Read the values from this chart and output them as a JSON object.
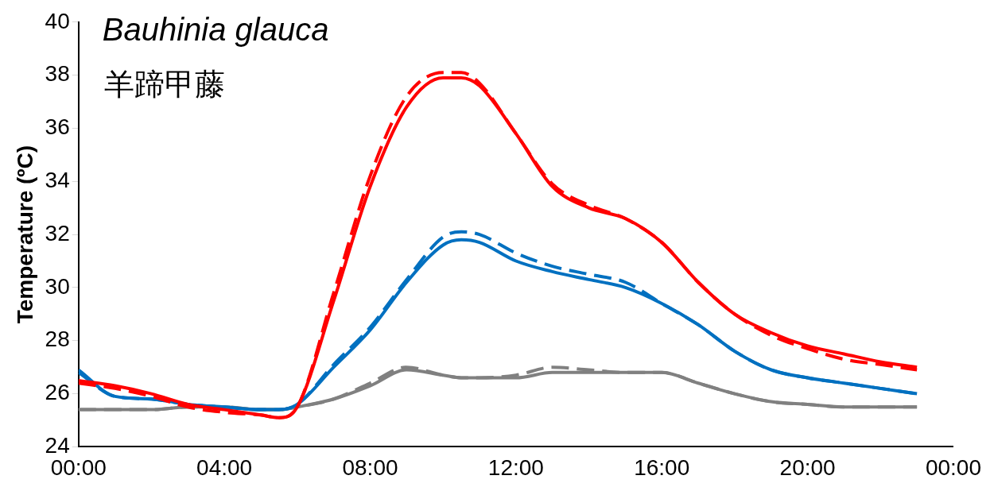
{
  "chart_data": {
    "type": "line",
    "title": "Bauhinia glauca",
    "subtitle": "羊蹄甲藤",
    "ylabel": "Temperature (ºC)",
    "x": [
      0,
      1,
      2,
      3,
      4,
      5,
      5.5,
      6,
      7,
      8,
      9,
      10,
      10.5,
      11,
      12,
      13,
      14,
      15,
      16,
      17,
      18,
      19,
      20,
      21,
      22,
      23
    ],
    "xlim": [
      0,
      24
    ],
    "xticks": [
      {
        "value": 0,
        "label": "00:00"
      },
      {
        "value": 4,
        "label": "04:00"
      },
      {
        "value": 8,
        "label": "08:00"
      },
      {
        "value": 12,
        "label": "12:00"
      },
      {
        "value": 16,
        "label": "16:00"
      },
      {
        "value": 20,
        "label": "20:00"
      },
      {
        "value": 24,
        "label": "00:00"
      }
    ],
    "ylim": [
      24,
      40
    ],
    "yticks": [
      24,
      26,
      28,
      30,
      32,
      34,
      36,
      38,
      40
    ],
    "grid": false,
    "legend": false,
    "marker": "none",
    "series": [
      {
        "color": "#ff0000",
        "line_style": "solid",
        "values": [
          26.5,
          26.3,
          26.0,
          25.6,
          25.4,
          25.2,
          25.1,
          25.5,
          29.5,
          33.8,
          36.8,
          37.9,
          37.9,
          37.6,
          35.8,
          33.8,
          33.0,
          32.6,
          31.7,
          30.2,
          29.0,
          28.3,
          27.8,
          27.5,
          27.2,
          27.0
        ]
      },
      {
        "color": "#ff0000",
        "line_style": "dashed",
        "values": [
          26.4,
          26.2,
          25.9,
          25.5,
          25.3,
          25.2,
          25.1,
          25.5,
          29.8,
          34.2,
          37.2,
          38.1,
          38.1,
          37.7,
          35.8,
          33.9,
          33.1,
          32.6,
          31.7,
          30.2,
          29.0,
          28.2,
          27.7,
          27.3,
          27.1,
          26.9
        ]
      },
      {
        "color": "#0070c0",
        "line_style": "solid",
        "values": [
          26.9,
          25.9,
          25.8,
          25.6,
          25.5,
          25.4,
          25.4,
          25.6,
          27.0,
          28.4,
          30.2,
          31.6,
          31.8,
          31.7,
          31.0,
          30.6,
          30.3,
          30.0,
          29.4,
          28.6,
          27.6,
          26.9,
          26.6,
          26.4,
          26.2,
          26.0
        ]
      },
      {
        "color": "#0070c0",
        "line_style": "dashed",
        "values": [
          26.8,
          25.9,
          25.8,
          25.6,
          25.5,
          25.4,
          25.4,
          25.6,
          27.1,
          28.5,
          30.3,
          31.9,
          32.1,
          32.0,
          31.3,
          30.8,
          30.5,
          30.2,
          29.4,
          28.6,
          27.6,
          26.9,
          26.6,
          26.4,
          26.2,
          26.0
        ]
      },
      {
        "color": "#808080",
        "line_style": "solid",
        "values": [
          25.4,
          25.4,
          25.4,
          25.5,
          25.5,
          25.4,
          25.4,
          25.5,
          25.8,
          26.3,
          26.9,
          26.7,
          26.6,
          26.6,
          26.6,
          26.8,
          26.8,
          26.8,
          26.8,
          26.4,
          26.0,
          25.7,
          25.6,
          25.5,
          25.5,
          25.5
        ]
      },
      {
        "color": "#808080",
        "line_style": "dashed",
        "values": [
          25.4,
          25.4,
          25.4,
          25.5,
          25.5,
          25.4,
          25.4,
          25.5,
          25.8,
          26.4,
          27.0,
          26.7,
          26.6,
          26.6,
          26.7,
          27.0,
          26.9,
          26.8,
          26.8,
          26.4,
          26.0,
          25.7,
          25.6,
          25.5,
          25.5,
          25.5
        ]
      }
    ]
  }
}
